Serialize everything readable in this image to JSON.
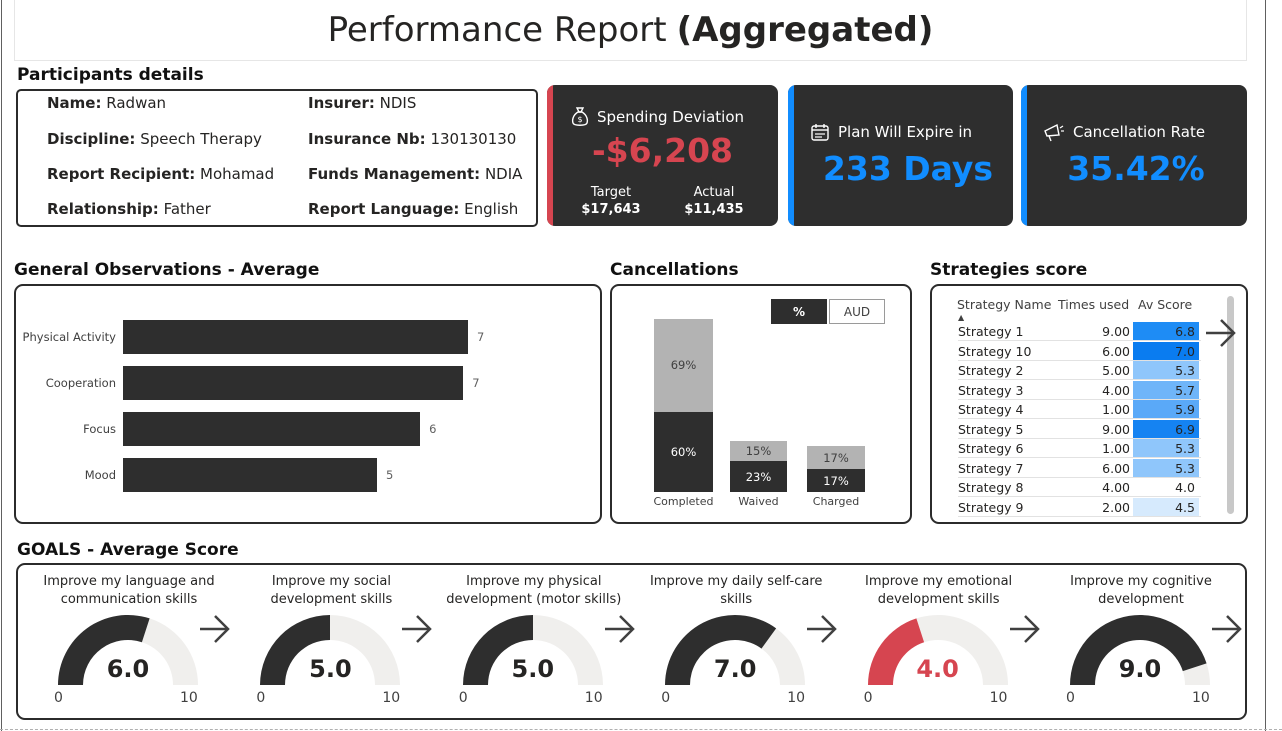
{
  "title": {
    "main": "Performance Report",
    "bold": "(Aggregated)"
  },
  "participants": {
    "section_title": "Participants details",
    "fields": [
      {
        "label": "Name:",
        "value": "Radwan"
      },
      {
        "label": "Insurer:",
        "value": "NDIS"
      },
      {
        "label": "Discipline:",
        "value": "Speech Therapy"
      },
      {
        "label": "Insurance Nb:",
        "value": "130130130"
      },
      {
        "label": "Report Recipient:",
        "value": "Mohamad"
      },
      {
        "label": "Funds Management:",
        "value": "NDIA"
      },
      {
        "label": "Relationship:",
        "value": "Father"
      },
      {
        "label": "Report Language:",
        "value": "English"
      }
    ]
  },
  "kpis": {
    "spending": {
      "title": "Spending Deviation",
      "value": "-$6,208",
      "target_label": "Target",
      "target_value": "$17,643",
      "actual_label": "Actual",
      "actual_value": "$11,435",
      "accent": "#d64550",
      "icon": "money-bag-icon"
    },
    "expire": {
      "title": "Plan Will Expire in",
      "value": "233 Days",
      "accent": "#118dff",
      "icon": "calendar-icon"
    },
    "cancellation": {
      "title": "Cancellation Rate",
      "value": "35.42%",
      "accent": "#118dff",
      "icon": "megaphone-icon"
    }
  },
  "observations": {
    "section_title": "General Observations - Average",
    "chart_data": {
      "type": "bar",
      "orientation": "horizontal",
      "categories": [
        "Physical Activity",
        "Cooperation",
        "Focus",
        "Mood"
      ],
      "values": [
        7,
        7,
        6,
        5
      ],
      "plot_values": [
        7.2,
        7.1,
        6.2,
        5.3
      ],
      "xlim": [
        0,
        7.2
      ]
    }
  },
  "cancellations": {
    "section_title": "Cancellations",
    "toggle": {
      "active": "%",
      "inactive": "AUD"
    },
    "chart_data": {
      "type": "bar",
      "stacked": true,
      "categories": [
        "Completed",
        "Waived",
        "Charged"
      ],
      "series": [
        {
          "values": [
            60,
            23,
            17
          ],
          "labels": [
            "60%",
            "23%",
            "17%"
          ],
          "color": "#2e2e2e"
        },
        {
          "values": [
            69,
            15,
            17
          ],
          "labels": [
            "69%",
            "15%",
            "17%"
          ],
          "color": "#b3b3b3"
        }
      ]
    }
  },
  "strategies": {
    "section_title": "Strategies score",
    "columns": [
      "Strategy Name",
      "Times used",
      "Av Score"
    ],
    "rows": [
      {
        "name": "Strategy 1",
        "times": "9.00",
        "score": "6.8",
        "color": "#1e8cf5"
      },
      {
        "name": "Strategy 10",
        "times": "6.00",
        "score": "7.0",
        "color": "#0a7cf0"
      },
      {
        "name": "Strategy 2",
        "times": "5.00",
        "score": "5.3",
        "color": "#8fc6fb"
      },
      {
        "name": "Strategy 3",
        "times": "4.00",
        "score": "5.7",
        "color": "#6fb5f9"
      },
      {
        "name": "Strategy 4",
        "times": "1.00",
        "score": "5.9",
        "color": "#5aa9f8"
      },
      {
        "name": "Strategy 5",
        "times": "9.00",
        "score": "6.9",
        "color": "#1583f2"
      },
      {
        "name": "Strategy 6",
        "times": "1.00",
        "score": "5.3",
        "color": "#8fc6fb"
      },
      {
        "name": "Strategy 7",
        "times": "6.00",
        "score": "5.3",
        "color": "#8fc6fb"
      },
      {
        "name": "Strategy 8",
        "times": "4.00",
        "score": "4.0",
        "color": "#ffffff"
      },
      {
        "name": "Strategy 9",
        "times": "2.00",
        "score": "4.5",
        "color": "#d6eafd"
      }
    ]
  },
  "goals": {
    "section_title": "GOALS - Average Score",
    "items": [
      {
        "title": "Improve my language and communication skills",
        "value": 6.0,
        "display": "6.0",
        "min": "0",
        "max": "10",
        "color": "#2e2e2e"
      },
      {
        "title": "Improve my social development skills",
        "value": 5.0,
        "display": "5.0",
        "min": "0",
        "max": "10",
        "color": "#2e2e2e"
      },
      {
        "title": "Improve my physical development (motor skills)",
        "value": 5.0,
        "display": "5.0",
        "min": "0",
        "max": "10",
        "color": "#2e2e2e"
      },
      {
        "title": "Improve my daily self-care skills",
        "value": 7.0,
        "display": "7.0",
        "min": "0",
        "max": "10",
        "color": "#2e2e2e"
      },
      {
        "title": "Improve my emotional development skills",
        "value": 4.0,
        "display": "4.0",
        "min": "0",
        "max": "10",
        "color": "#d64550"
      },
      {
        "title": "Improve my cognitive development",
        "value": 9.0,
        "display": "9.0",
        "min": "0",
        "max": "10",
        "color": "#2e2e2e"
      }
    ]
  }
}
